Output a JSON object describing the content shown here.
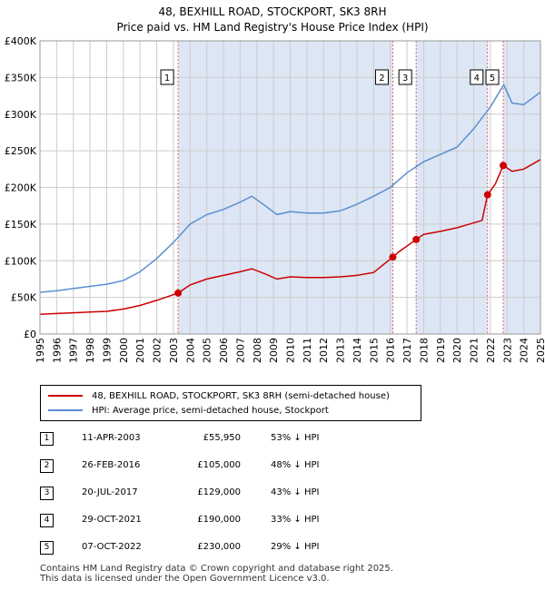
{
  "title_line1": "48, BEXHILL ROAD, STOCKPORT, SK3 8RH",
  "title_line2": "Price paid vs. HM Land Registry's House Price Index (HPI)",
  "colors": {
    "red": "#cc0000",
    "blue": "#5b8fd0",
    "shade": "#dde6f4",
    "grid": "#cccccc"
  },
  "legend": {
    "red_label": "48, BEXHILL ROAD, STOCKPORT, SK3 8RH (semi-detached house)",
    "blue_label": "HPI: Average price, semi-detached house, Stockport"
  },
  "transactions": [
    {
      "num": "1",
      "date": "11-APR-2003",
      "price": "£55,950",
      "hpi": "53% ↓ HPI",
      "x": 2003.28,
      "y": 55950
    },
    {
      "num": "2",
      "date": "26-FEB-2016",
      "price": "£105,000",
      "hpi": "48% ↓ HPI",
      "x": 2016.15,
      "y": 105000
    },
    {
      "num": "3",
      "date": "20-JUL-2017",
      "price": "£129,000",
      "hpi": "43% ↓ HPI",
      "x": 2017.55,
      "y": 129000
    },
    {
      "num": "4",
      "date": "29-OCT-2021",
      "price": "£190,000",
      "hpi": "33% ↓ HPI",
      "x": 2021.83,
      "y": 190000
    },
    {
      "num": "5",
      "date": "07-OCT-2022",
      "price": "£230,000",
      "hpi": "29% ↓ HPI",
      "x": 2022.77,
      "y": 230000
    }
  ],
  "footer_line1": "Contains HM Land Registry data © Crown copyright and database right 2025.",
  "footer_line2": "This data is licensed under the Open Government Licence v3.0.",
  "chart_data": {
    "type": "line",
    "title": "Price paid vs. HM Land Registry's House Price Index (HPI)",
    "xlabel": "",
    "ylabel": "",
    "xlim": [
      1995,
      2025
    ],
    "ylim": [
      0,
      400000
    ],
    "y_ticks": [
      0,
      50000,
      100000,
      150000,
      200000,
      250000,
      300000,
      350000,
      400000
    ],
    "y_tick_labels": [
      "£0",
      "£50K",
      "£100K",
      "£150K",
      "£200K",
      "£250K",
      "£300K",
      "£350K",
      "£400K"
    ],
    "x_ticks": [
      "1995",
      "1996",
      "1997",
      "1998",
      "1999",
      "2000",
      "2001",
      "2002",
      "2003",
      "2004",
      "2005",
      "2006",
      "2007",
      "2008",
      "2009",
      "2010",
      "2011",
      "2012",
      "2013",
      "2014",
      "2015",
      "2016",
      "2017",
      "2018",
      "2019",
      "2020",
      "2021",
      "2022",
      "2023",
      "2024",
      "2025"
    ],
    "grid": true,
    "shaded_ranges": [
      [
        2003.28,
        2016.15
      ],
      [
        2017.55,
        2021.83
      ],
      [
        2022.77,
        2025
      ]
    ],
    "series": [
      {
        "name": "48, BEXHILL ROAD, STOCKPORT, SK3 8RH (semi-detached house)",
        "color": "#cc0000",
        "x": [
          1995,
          1996,
          1997,
          1998,
          1999,
          2000,
          2001,
          2002,
          2003.28,
          2004,
          2005,
          2006,
          2007,
          2007.7,
          2008.5,
          2009.2,
          2010,
          2011,
          2012,
          2013,
          2014,
          2015,
          2016.15,
          2016.5,
          2017.55,
          2018,
          2019,
          2020,
          2021.5,
          2021.83,
          2022.3,
          2022.77,
          2023.3,
          2024,
          2025
        ],
        "values": [
          27000,
          28000,
          29000,
          30000,
          31000,
          34000,
          39000,
          46000,
          55950,
          67000,
          75000,
          80000,
          85000,
          89000,
          82000,
          75000,
          78000,
          77000,
          77000,
          78000,
          80000,
          84000,
          105000,
          112000,
          129000,
          136000,
          140000,
          145000,
          155000,
          190000,
          205000,
          230000,
          222000,
          225000,
          238000
        ]
      },
      {
        "name": "HPI: Average price, semi-detached house, Stockport",
        "color": "#5b8fd0",
        "x": [
          1995,
          1996,
          1997,
          1998,
          1999,
          2000,
          2001,
          2002,
          2003,
          2004,
          2005,
          2006,
          2007,
          2007.7,
          2008.5,
          2009.2,
          2010,
          2011,
          2012,
          2013,
          2014,
          2015,
          2016,
          2017,
          2018,
          2019,
          2020,
          2021,
          2022,
          2022.8,
          2023.3,
          2024,
          2025
        ],
        "values": [
          57000,
          59000,
          62000,
          65000,
          68000,
          73000,
          85000,
          103000,
          125000,
          150000,
          163000,
          170000,
          180000,
          188000,
          175000,
          163000,
          167000,
          165000,
          165000,
          168000,
          177000,
          188000,
          200000,
          220000,
          235000,
          245000,
          255000,
          280000,
          310000,
          340000,
          315000,
          313000,
          330000
        ]
      }
    ]
  }
}
